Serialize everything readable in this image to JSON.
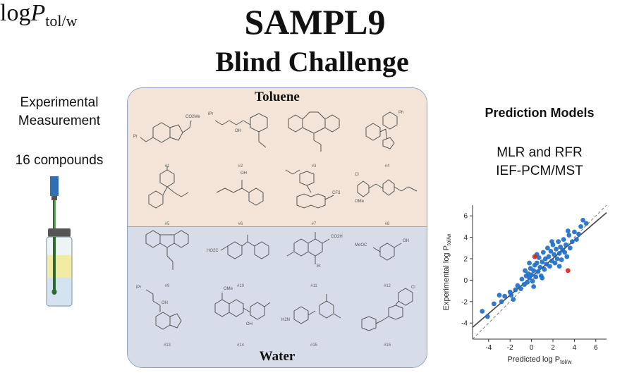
{
  "header": {
    "title": "SAMPL9",
    "subtitle": "Blind Challenge"
  },
  "left": {
    "measurement_line1": "Experimental",
    "measurement_line2": "Measurement",
    "compounds": "16 compounds",
    "logp_main": "log",
    "logp_var": "P",
    "logp_sub": "tol/w"
  },
  "panel": {
    "top_phase": "Toluene",
    "bottom_phase": "Water",
    "compounds": [
      "#1",
      "#2",
      "#3",
      "#4",
      "#5",
      "#6",
      "#7",
      "#8",
      "#9",
      "#10",
      "#11",
      "#12",
      "#13",
      "#14",
      "#15",
      "#16"
    ],
    "group_labels": {
      "m1_a": "CO2Me",
      "m1_b": "Pr",
      "m2_a": "iPr",
      "m2_b": "OH",
      "m4_a": "Ph",
      "m7_a": "CF3",
      "m8_a": "Cl",
      "m8_b": "OMe",
      "m10_a": "HO2C",
      "m11_a": "CO2H",
      "m11_b": "Et",
      "m12_a": "MeOC",
      "m12_b": "OH",
      "m13_a": "iPr",
      "m13_b": "OH",
      "m14_a": "OMe",
      "m14_b": "OH",
      "m15_a": "H2N",
      "m16_a": "Cl",
      "m6_a": "OH"
    }
  },
  "right": {
    "heading": "Prediction Models",
    "model_line1": "MLR and RFR",
    "model_line2": "IEF-PCM/MST"
  },
  "colors": {
    "toluene_bg": "#f3e4d7",
    "water_bg": "#d6dde8",
    "point_blue": "#1f6fc8",
    "point_red": "#e0241b"
  },
  "chart_data": {
    "type": "scatter",
    "xlabel": "Predicted log P",
    "xlabel_sub": "tol/w",
    "ylabel": "Experimental log P",
    "ylabel_sub": "tol/w",
    "xlim": [
      -5.5,
      7
    ],
    "ylim": [
      -5.5,
      7
    ],
    "xticks": [
      -4,
      -2,
      0,
      2,
      4,
      6
    ],
    "yticks": [
      -4,
      -2,
      0,
      2,
      4,
      6
    ],
    "grid": false,
    "fit_line": [
      [
        -5.5,
        -4.4
      ],
      [
        7,
        6.3
      ]
    ],
    "identity_line": true,
    "series": [
      {
        "color": "blue",
        "points": [
          [
            -4.6,
            -2.9
          ],
          [
            -4.1,
            -3.4
          ],
          [
            -3.5,
            -2.2
          ],
          [
            -3.0,
            -1.4
          ],
          [
            -2.5,
            -1.5
          ],
          [
            -2.0,
            -1.1
          ],
          [
            -1.9,
            -1.4
          ],
          [
            -1.5,
            -0.9
          ],
          [
            -1.3,
            -0.5
          ],
          [
            -1.0,
            -0.8
          ],
          [
            -0.9,
            0.1
          ],
          [
            -0.7,
            -0.4
          ],
          [
            -0.5,
            0.4
          ],
          [
            -0.4,
            -0.2
          ],
          [
            -0.3,
            0.6
          ],
          [
            -0.2,
            0.2
          ],
          [
            -0.1,
            1.1
          ],
          [
            0.0,
            0.5
          ],
          [
            0.1,
            -0.1
          ],
          [
            0.2,
            0.9
          ],
          [
            0.3,
            1.4
          ],
          [
            0.4,
            0.3
          ],
          [
            0.5,
            1.6
          ],
          [
            0.6,
            0.8
          ],
          [
            0.7,
            2.1
          ],
          [
            0.8,
            1.2
          ],
          [
            0.9,
            0.4
          ],
          [
            1.0,
            1.7
          ],
          [
            1.1,
            2.6
          ],
          [
            1.2,
            1.0
          ],
          [
            1.3,
            2.0
          ],
          [
            1.4,
            1.5
          ],
          [
            1.5,
            3.0
          ],
          [
            1.6,
            2.2
          ],
          [
            1.7,
            1.3
          ],
          [
            1.8,
            2.7
          ],
          [
            1.9,
            1.8
          ],
          [
            2.0,
            3.3
          ],
          [
            2.1,
            2.4
          ],
          [
            2.2,
            1.6
          ],
          [
            2.3,
            2.9
          ],
          [
            2.4,
            2.0
          ],
          [
            2.5,
            3.6
          ],
          [
            2.6,
            2.5
          ],
          [
            2.7,
            3.1
          ],
          [
            2.8,
            1.9
          ],
          [
            2.9,
            2.8
          ],
          [
            3.0,
            3.8
          ],
          [
            3.1,
            2.6
          ],
          [
            3.2,
            3.3
          ],
          [
            3.3,
            2.2
          ],
          [
            3.5,
            4.2
          ],
          [
            3.6,
            3.0
          ],
          [
            3.8,
            3.6
          ],
          [
            4.0,
            4.5
          ],
          [
            4.2,
            3.8
          ],
          [
            4.4,
            4.3
          ],
          [
            4.6,
            5.0
          ],
          [
            4.8,
            5.6
          ],
          [
            5.1,
            5.3
          ],
          [
            -0.6,
            0.9
          ],
          [
            0.2,
            -0.6
          ],
          [
            1.0,
            0.2
          ],
          [
            2.6,
            1.3
          ],
          [
            -1.7,
            -1.8
          ],
          [
            0.5,
            2.4
          ],
          [
            1.9,
            3.6
          ],
          [
            3.4,
            4.6
          ],
          [
            -2.8,
            -2.0
          ],
          [
            -0.2,
            1.6
          ]
        ]
      },
      {
        "color": "red",
        "points": [
          [
            0.3,
            2.2
          ],
          [
            3.4,
            0.9
          ]
        ]
      }
    ]
  }
}
